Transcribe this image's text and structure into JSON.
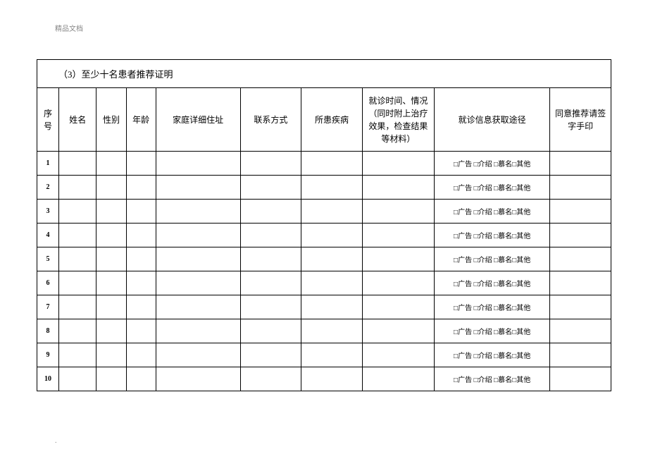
{
  "watermark": "精品文档",
  "table": {
    "title": "（3）至少十名患者推荐证明",
    "headers": {
      "seq": "序号",
      "name": "姓名",
      "gender": "性别",
      "age": "年龄",
      "address": "家庭详细住址",
      "contact": "联系方式",
      "disease": "所患疾病",
      "visit_info": "就诊时间、情况（同时附上治疗效果，检查结果等材料）",
      "source": "就诊信息获取途径",
      "signature": "同意推荐请签字手印"
    },
    "source_options": "□广告 □介绍 □慕名□其他",
    "rows": [
      {
        "seq": "1"
      },
      {
        "seq": "2"
      },
      {
        "seq": "3"
      },
      {
        "seq": "4"
      },
      {
        "seq": "5"
      },
      {
        "seq": "6"
      },
      {
        "seq": "7"
      },
      {
        "seq": "8"
      },
      {
        "seq": "9"
      },
      {
        "seq": "10"
      }
    ]
  }
}
